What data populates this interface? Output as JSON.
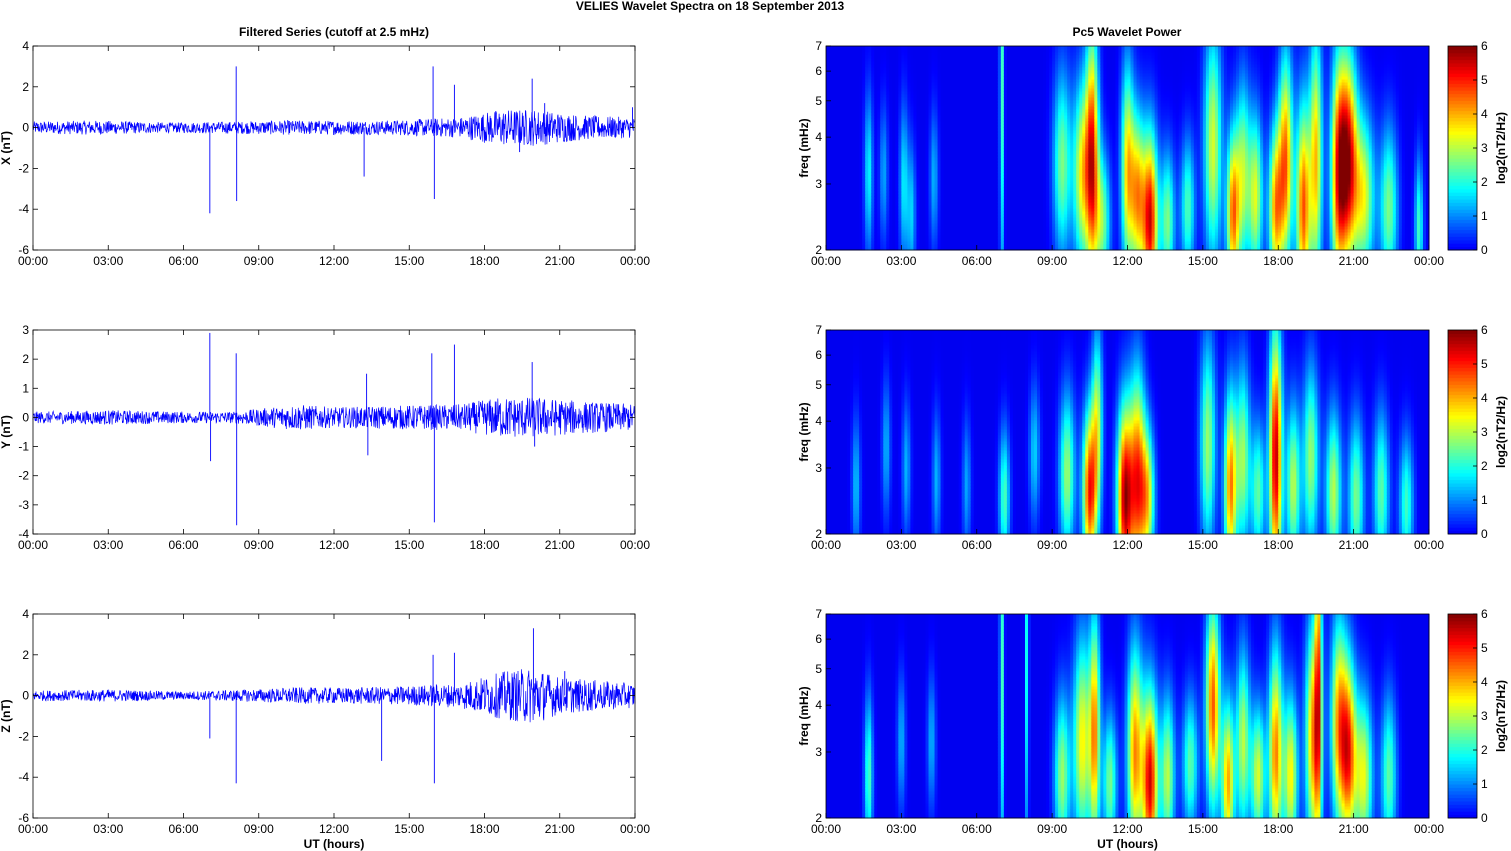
{
  "figure": {
    "suptitle": "VELIES Wavelet Spectra on 18 September 2013",
    "left_title": "Filtered Series (cutoff at 2.5 mHz)",
    "right_title": "Pc5 Wavelet Power"
  },
  "chart_data": [
    {
      "type": "line",
      "title": "Filtered Series (cutoff at 2.5 mHz)",
      "xlabel": "",
      "ylabel": "X (nT)",
      "xlim": [
        0,
        24
      ],
      "ylim": [
        -6,
        4
      ],
      "xticks": [
        "00:00",
        "03:00",
        "06:00",
        "09:00",
        "12:00",
        "15:00",
        "18:00",
        "21:00",
        "00:00"
      ],
      "yticks": [
        "-6",
        "-4",
        "-2",
        "0",
        "2",
        "4"
      ],
      "color": "#0000ff",
      "envelope": [
        [
          0,
          0.3
        ],
        [
          2.5,
          0.35
        ],
        [
          5.5,
          0.25
        ],
        [
          8.0,
          0.3
        ],
        [
          10.0,
          0.35
        ],
        [
          12.0,
          0.35
        ],
        [
          14.0,
          0.35
        ],
        [
          17.0,
          0.5
        ],
        [
          18.6,
          0.9
        ],
        [
          20.0,
          0.9
        ],
        [
          22.0,
          0.6
        ],
        [
          24.0,
          0.5
        ]
      ],
      "spikes": [
        [
          7.05,
          -4.2
        ],
        [
          8.1,
          3.0
        ],
        [
          8.12,
          -3.6
        ],
        [
          13.2,
          -2.4
        ],
        [
          15.95,
          3.0
        ],
        [
          16.0,
          -3.5
        ],
        [
          16.8,
          2.1
        ],
        [
          19.9,
          2.4
        ],
        [
          20.4,
          1.2
        ],
        [
          19.4,
          -1.2
        ],
        [
          23.9,
          1.0
        ]
      ]
    },
    {
      "type": "line",
      "title": "",
      "xlabel": "",
      "ylabel": "Y (nT)",
      "xlim": [
        0,
        24
      ],
      "ylim": [
        -4,
        3
      ],
      "xticks": [
        "00:00",
        "03:00",
        "06:00",
        "09:00",
        "12:00",
        "15:00",
        "18:00",
        "21:00",
        "00:00"
      ],
      "yticks": [
        "-4",
        "-3",
        "-2",
        "-1",
        "0",
        "1",
        "2",
        "3"
      ],
      "color": "#0000ff",
      "envelope": [
        [
          0,
          0.2
        ],
        [
          3.0,
          0.25
        ],
        [
          6.0,
          0.2
        ],
        [
          8.0,
          0.2
        ],
        [
          10.5,
          0.45
        ],
        [
          12.0,
          0.35
        ],
        [
          14.0,
          0.4
        ],
        [
          17.0,
          0.45
        ],
        [
          18.6,
          0.7
        ],
        [
          20.0,
          0.7
        ],
        [
          22.0,
          0.55
        ],
        [
          24.0,
          0.45
        ]
      ],
      "spikes": [
        [
          7.05,
          2.9
        ],
        [
          7.08,
          -1.5
        ],
        [
          8.1,
          2.2
        ],
        [
          8.12,
          -3.7
        ],
        [
          13.3,
          1.5
        ],
        [
          13.35,
          -1.3
        ],
        [
          15.9,
          2.2
        ],
        [
          16.0,
          -3.6
        ],
        [
          16.8,
          2.5
        ],
        [
          19.9,
          1.9
        ],
        [
          20.0,
          -1.0
        ]
      ]
    },
    {
      "type": "line",
      "title": "",
      "xlabel": "UT (hours)",
      "ylabel": "Z (nT)",
      "xlim": [
        0,
        24
      ],
      "ylim": [
        -6,
        4
      ],
      "xticks": [
        "00:00",
        "03:00",
        "06:00",
        "09:00",
        "12:00",
        "15:00",
        "18:00",
        "21:00",
        "00:00"
      ],
      "yticks": [
        "-6",
        "-4",
        "-2",
        "0",
        "2",
        "4"
      ],
      "color": "#0000ff",
      "envelope": [
        [
          0,
          0.25
        ],
        [
          3.0,
          0.3
        ],
        [
          6.0,
          0.2
        ],
        [
          8.5,
          0.3
        ],
        [
          10.5,
          0.4
        ],
        [
          12.5,
          0.4
        ],
        [
          14.5,
          0.45
        ],
        [
          17.0,
          0.6
        ],
        [
          18.8,
          1.2
        ],
        [
          20.0,
          1.4
        ],
        [
          21.0,
          0.9
        ],
        [
          24.0,
          0.6
        ]
      ],
      "spikes": [
        [
          7.05,
          -2.1
        ],
        [
          8.1,
          -4.3
        ],
        [
          13.9,
          -3.2
        ],
        [
          15.95,
          2.0
        ],
        [
          16.0,
          -4.3
        ],
        [
          16.8,
          2.1
        ],
        [
          19.95,
          3.3
        ],
        [
          20.0,
          -0.9
        ],
        [
          21.2,
          1.2
        ]
      ]
    },
    {
      "type": "heatmap",
      "title": "Pc5 Wavelet Power",
      "xlabel": "",
      "ylabel": "freq (mHz)",
      "xlim": [
        0,
        24
      ],
      "ylim": [
        2,
        7
      ],
      "yscale": "log",
      "xticks": [
        "00:00",
        "03:00",
        "06:00",
        "09:00",
        "12:00",
        "15:00",
        "18:00",
        "21:00",
        "00:00"
      ],
      "yticks": [
        "2",
        "3",
        "4",
        "5",
        "6",
        "7"
      ],
      "colorbar": {
        "label": "log2(nT2/Hz)",
        "ticks": [
          "0",
          "1",
          "2",
          "3",
          "4",
          "5",
          "6"
        ],
        "range": [
          0,
          6
        ],
        "colormap": "jet"
      },
      "blobs": [
        [
          1.7,
          3.2,
          0.12,
          0.35,
          1.8
        ],
        [
          2.3,
          3.2,
          0.12,
          0.3,
          1.2
        ],
        [
          3.1,
          3.0,
          0.12,
          0.35,
          1.7
        ],
        [
          3.4,
          2.5,
          0.12,
          0.3,
          1.5
        ],
        [
          4.3,
          3.1,
          0.12,
          0.3,
          1.3
        ],
        [
          7.0,
          5.5,
          0.06,
          0.9,
          2.3
        ],
        [
          9.4,
          3.4,
          0.25,
          0.4,
          2.6
        ],
        [
          10.2,
          3.2,
          0.25,
          0.4,
          3.5
        ],
        [
          10.6,
          3.6,
          0.18,
          0.55,
          4.6
        ],
        [
          11.0,
          2.4,
          0.22,
          0.3,
          2.6
        ],
        [
          12.0,
          3.3,
          0.18,
          0.45,
          3.6
        ],
        [
          12.4,
          2.8,
          0.2,
          0.35,
          3.8
        ],
        [
          12.9,
          2.4,
          0.22,
          0.38,
          5.4
        ],
        [
          13.6,
          2.4,
          0.2,
          0.3,
          2.6
        ],
        [
          14.4,
          2.6,
          0.2,
          0.3,
          2.3
        ],
        [
          15.4,
          3.8,
          0.25,
          0.5,
          3.2
        ],
        [
          16.2,
          2.5,
          0.18,
          0.35,
          4.3
        ],
        [
          16.6,
          3.2,
          0.2,
          0.4,
          2.8
        ],
        [
          17.1,
          2.8,
          0.2,
          0.35,
          3.2
        ],
        [
          17.9,
          2.6,
          0.2,
          0.35,
          4.0
        ],
        [
          18.3,
          3.5,
          0.2,
          0.45,
          4.3
        ],
        [
          19.0,
          2.6,
          0.2,
          0.45,
          4.6
        ],
        [
          19.5,
          3.5,
          0.18,
          0.55,
          3.8
        ],
        [
          20.4,
          3.2,
          0.22,
          0.5,
          4.6
        ],
        [
          20.8,
          3.5,
          0.25,
          0.45,
          5.0
        ],
        [
          21.4,
          2.8,
          0.3,
          0.35,
          3.3
        ],
        [
          22.4,
          2.6,
          0.25,
          0.35,
          2.6
        ],
        [
          23.6,
          2.3,
          0.12,
          0.3,
          2.2
        ]
      ]
    },
    {
      "type": "heatmap",
      "title": "",
      "xlabel": "",
      "ylabel": "freq (mHz)",
      "xlim": [
        0,
        24
      ],
      "ylim": [
        2,
        7
      ],
      "yscale": "log",
      "xticks": [
        "00:00",
        "03:00",
        "06:00",
        "09:00",
        "12:00",
        "15:00",
        "18:00",
        "21:00",
        "00:00"
      ],
      "yticks": [
        "2",
        "3",
        "4",
        "5",
        "6",
        "7"
      ],
      "colorbar": {
        "label": "log2(nT2/Hz)",
        "ticks": [
          "0",
          "1",
          "2",
          "3",
          "4",
          "5",
          "6"
        ],
        "range": [
          0,
          6
        ],
        "colormap": "jet"
      },
      "blobs": [
        [
          1.2,
          2.7,
          0.12,
          0.3,
          1.4
        ],
        [
          2.4,
          3.4,
          0.12,
          0.3,
          1.3
        ],
        [
          3.2,
          3.0,
          0.12,
          0.3,
          1.3
        ],
        [
          4.4,
          2.8,
          0.12,
          0.3,
          1.3
        ],
        [
          5.6,
          2.7,
          0.12,
          0.3,
          1.2
        ],
        [
          7.1,
          2.5,
          0.15,
          0.3,
          2.3
        ],
        [
          8.3,
          3.3,
          0.15,
          0.3,
          1.5
        ],
        [
          9.6,
          2.9,
          0.22,
          0.35,
          2.8
        ],
        [
          10.5,
          2.6,
          0.2,
          0.35,
          5.0
        ],
        [
          10.8,
          4.0,
          0.15,
          0.4,
          2.8
        ],
        [
          11.9,
          2.5,
          0.22,
          0.4,
          5.6
        ],
        [
          12.4,
          2.8,
          0.22,
          0.45,
          4.5
        ],
        [
          12.8,
          2.5,
          0.2,
          0.3,
          3.3
        ],
        [
          15.2,
          3.5,
          0.22,
          0.45,
          2.8
        ],
        [
          16.1,
          2.7,
          0.18,
          0.4,
          4.3
        ],
        [
          16.6,
          3.2,
          0.2,
          0.4,
          2.8
        ],
        [
          17.2,
          2.6,
          0.2,
          0.3,
          2.4
        ],
        [
          17.9,
          3.2,
          0.18,
          0.55,
          5.6
        ],
        [
          18.6,
          2.7,
          0.2,
          0.35,
          3.0
        ],
        [
          19.3,
          3.2,
          0.22,
          0.4,
          2.8
        ],
        [
          20.2,
          2.6,
          0.22,
          0.35,
          3.0
        ],
        [
          21.1,
          2.5,
          0.22,
          0.35,
          2.6
        ],
        [
          22.1,
          2.6,
          0.22,
          0.35,
          2.4
        ],
        [
          23.1,
          2.4,
          0.2,
          0.3,
          2.2
        ]
      ]
    },
    {
      "type": "heatmap",
      "title": "",
      "xlabel": "UT (hours)",
      "ylabel": "freq (mHz)",
      "xlim": [
        0,
        24
      ],
      "ylim": [
        2,
        7
      ],
      "yscale": "log",
      "xticks": [
        "00:00",
        "03:00",
        "06:00",
        "09:00",
        "12:00",
        "15:00",
        "18:00",
        "21:00",
        "00:00"
      ],
      "yticks": [
        "2",
        "3",
        "4",
        "5",
        "6",
        "7"
      ],
      "colorbar": {
        "label": "log2(nT2/Hz)",
        "ticks": [
          "0",
          "1",
          "2",
          "3",
          "4",
          "5",
          "6"
        ],
        "range": [
          0,
          6
        ],
        "colormap": "jet"
      },
      "blobs": [
        [
          1.7,
          2.6,
          0.12,
          0.35,
          2.3
        ],
        [
          3.0,
          3.2,
          0.12,
          0.3,
          1.3
        ],
        [
          4.2,
          3.2,
          0.12,
          0.3,
          1.3
        ],
        [
          7.0,
          5.0,
          0.06,
          0.9,
          2.3
        ],
        [
          8.0,
          5.5,
          0.05,
          0.9,
          2.0
        ],
        [
          9.4,
          2.6,
          0.22,
          0.35,
          2.8
        ],
        [
          10.2,
          3.2,
          0.25,
          0.45,
          3.5
        ],
        [
          10.7,
          3.4,
          0.15,
          0.5,
          4.0
        ],
        [
          11.3,
          2.5,
          0.2,
          0.3,
          2.6
        ],
        [
          12.3,
          3.0,
          0.22,
          0.45,
          4.2
        ],
        [
          12.9,
          2.5,
          0.22,
          0.4,
          5.4
        ],
        [
          13.6,
          2.6,
          0.2,
          0.35,
          3.0
        ],
        [
          14.5,
          2.8,
          0.22,
          0.3,
          2.4
        ],
        [
          15.4,
          4.0,
          0.2,
          0.45,
          4.6
        ],
        [
          16.0,
          2.5,
          0.18,
          0.35,
          4.0
        ],
        [
          16.6,
          3.2,
          0.2,
          0.4,
          3.0
        ],
        [
          17.2,
          2.6,
          0.2,
          0.3,
          3.2
        ],
        [
          17.9,
          3.0,
          0.2,
          0.45,
          4.3
        ],
        [
          18.5,
          2.6,
          0.2,
          0.35,
          3.5
        ],
        [
          19.4,
          3.3,
          0.22,
          0.5,
          4.2
        ],
        [
          19.6,
          5.0,
          0.1,
          0.8,
          3.3
        ],
        [
          20.4,
          3.6,
          0.22,
          0.45,
          3.8
        ],
        [
          20.8,
          3.0,
          0.22,
          0.4,
          4.6
        ],
        [
          21.4,
          2.6,
          0.25,
          0.35,
          3.3
        ],
        [
          22.4,
          2.6,
          0.22,
          0.35,
          2.4
        ]
      ]
    }
  ]
}
